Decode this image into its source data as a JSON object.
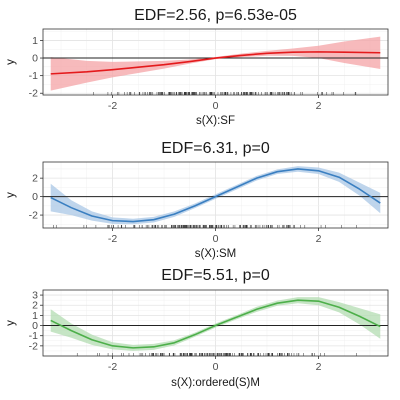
{
  "chart_data": [
    {
      "type": "line",
      "title": "EDF=2.56, p=6.53e-05",
      "xlabel": "s(X):SF",
      "ylabel": "y",
      "color": "#e41a1c",
      "band_color": "#f4a3a5",
      "xlim": [
        -3.35,
        3.35
      ],
      "ylim": [
        -2.1,
        1.65
      ],
      "x_ticks": [
        -2,
        0,
        2
      ],
      "y_ticks": [
        -2,
        -1,
        0,
        1
      ],
      "reference_line": 0,
      "grid": true,
      "series": [
        {
          "x": [
            -3.2,
            -2.5,
            -2,
            -1.5,
            -1,
            -0.5,
            0,
            0.5,
            1,
            1.5,
            2,
            2.5,
            3.2
          ],
          "values": [
            -0.9,
            -0.78,
            -0.66,
            -0.52,
            -0.38,
            -0.2,
            0,
            0.15,
            0.27,
            0.33,
            0.35,
            0.33,
            0.3
          ],
          "lower": [
            -1.85,
            -1.4,
            -1.1,
            -0.85,
            -0.6,
            -0.32,
            -0.06,
            0.05,
            0.13,
            0.12,
            0.0,
            -0.28,
            -0.62
          ],
          "upper": [
            0.05,
            -0.16,
            -0.22,
            -0.19,
            -0.16,
            -0.08,
            0.06,
            0.25,
            0.41,
            0.54,
            0.7,
            0.94,
            1.22
          ]
        }
      ]
    },
    {
      "type": "line",
      "title": "EDF=6.31, p=0",
      "xlabel": "s(X):SM",
      "ylabel": "y",
      "color": "#3a7fc1",
      "band_color": "#a9c7e6",
      "xlim": [
        -3.35,
        3.35
      ],
      "ylim": [
        -3.4,
        3.75
      ],
      "x_ticks": [
        -2,
        0,
        2
      ],
      "y_ticks": [
        -2,
        0,
        2
      ],
      "reference_line": 0,
      "grid": true,
      "series": [
        {
          "x": [
            -3.2,
            -2.8,
            -2.4,
            -2,
            -1.6,
            -1.2,
            -0.8,
            -0.4,
            0,
            0.4,
            0.8,
            1.2,
            1.6,
            2,
            2.4,
            2.8,
            3.2
          ],
          "values": [
            -0.1,
            -1.2,
            -2.1,
            -2.6,
            -2.7,
            -2.5,
            -1.9,
            -1.0,
            0.0,
            1.0,
            2.0,
            2.7,
            3.0,
            2.8,
            2.1,
            0.8,
            -0.7
          ],
          "lower": [
            -1.6,
            -2.0,
            -2.6,
            -2.95,
            -3.0,
            -2.8,
            -2.2,
            -1.25,
            -0.25,
            0.75,
            1.75,
            2.45,
            2.7,
            2.45,
            1.6,
            0.1,
            -1.8
          ],
          "upper": [
            1.4,
            -0.4,
            -1.6,
            -2.25,
            -2.4,
            -2.2,
            -1.6,
            -0.75,
            0.25,
            1.25,
            2.25,
            2.95,
            3.3,
            3.15,
            2.6,
            1.5,
            0.4
          ]
        }
      ]
    },
    {
      "type": "line",
      "title": "EDF=5.51, p=0",
      "xlabel": "s(X):ordered(S)M",
      "ylabel": "y",
      "color": "#4daf4a",
      "band_color": "#b3dcb2",
      "xlim": [
        -3.35,
        3.35
      ],
      "ylim": [
        -3.0,
        3.5
      ],
      "x_ticks": [
        -2,
        0,
        2
      ],
      "y_ticks": [
        -2,
        -1,
        0,
        1,
        2,
        3
      ],
      "reference_line": 0,
      "grid": true,
      "series": [
        {
          "x": [
            -3.2,
            -2.8,
            -2.4,
            -2,
            -1.6,
            -1.2,
            -0.8,
            -0.4,
            0,
            0.4,
            0.8,
            1.2,
            1.6,
            2,
            2.4,
            2.8,
            3.2
          ],
          "values": [
            0.5,
            -0.5,
            -1.4,
            -2.0,
            -2.2,
            -2.1,
            -1.7,
            -0.9,
            0.0,
            0.8,
            1.6,
            2.2,
            2.5,
            2.4,
            1.8,
            0.9,
            -0.1
          ],
          "lower": [
            -0.6,
            -1.2,
            -1.9,
            -2.35,
            -2.5,
            -2.4,
            -1.95,
            -1.1,
            -0.2,
            0.6,
            1.35,
            1.95,
            2.2,
            2.0,
            1.3,
            0.1,
            -1.3
          ],
          "upper": [
            1.6,
            0.2,
            -0.9,
            -1.65,
            -1.9,
            -1.8,
            -1.45,
            -0.7,
            0.2,
            1.0,
            1.85,
            2.45,
            2.8,
            2.8,
            2.3,
            1.7,
            1.1
          ]
        }
      ]
    }
  ]
}
